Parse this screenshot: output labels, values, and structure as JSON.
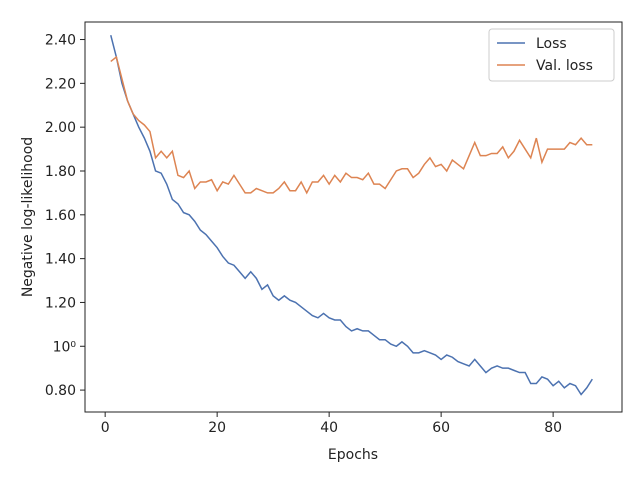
{
  "chart_data": {
    "type": "line",
    "xlabel": "Epochs",
    "ylabel": "Negative log-likelihood",
    "x": [
      1,
      2,
      3,
      4,
      5,
      6,
      7,
      8,
      9,
      10,
      11,
      12,
      13,
      14,
      15,
      16,
      17,
      18,
      19,
      20,
      21,
      22,
      23,
      24,
      25,
      26,
      27,
      28,
      29,
      30,
      31,
      32,
      33,
      34,
      35,
      36,
      37,
      38,
      39,
      40,
      41,
      42,
      43,
      44,
      45,
      46,
      47,
      48,
      49,
      50,
      51,
      52,
      53,
      54,
      55,
      56,
      57,
      58,
      59,
      60,
      61,
      62,
      63,
      64,
      65,
      66,
      67,
      68,
      69,
      70,
      71,
      72,
      73,
      74,
      75,
      76,
      77,
      78,
      79,
      80,
      81,
      82,
      83,
      84,
      85,
      86,
      87
    ],
    "series": [
      {
        "name": "Loss",
        "color": "#4c72b0",
        "values": [
          2.42,
          2.32,
          2.2,
          2.12,
          2.06,
          2.0,
          1.95,
          1.89,
          1.8,
          1.79,
          1.74,
          1.67,
          1.65,
          1.61,
          1.6,
          1.57,
          1.53,
          1.51,
          1.48,
          1.45,
          1.41,
          1.38,
          1.37,
          1.34,
          1.31,
          1.34,
          1.31,
          1.26,
          1.28,
          1.23,
          1.21,
          1.23,
          1.21,
          1.2,
          1.18,
          1.16,
          1.14,
          1.13,
          1.15,
          1.13,
          1.12,
          1.12,
          1.09,
          1.07,
          1.08,
          1.07,
          1.07,
          1.05,
          1.03,
          1.03,
          1.01,
          1.0,
          1.02,
          1.0,
          0.97,
          0.97,
          0.98,
          0.97,
          0.96,
          0.94,
          0.96,
          0.95,
          0.93,
          0.92,
          0.91,
          0.94,
          0.91,
          0.88,
          0.9,
          0.91,
          0.9,
          0.9,
          0.89,
          0.88,
          0.88,
          0.83,
          0.83,
          0.86,
          0.85,
          0.82,
          0.84,
          0.81,
          0.83,
          0.82,
          0.78,
          0.81,
          0.85
        ]
      },
      {
        "name": "Val. loss",
        "color": "#dd8452",
        "values": [
          2.3,
          2.32,
          2.22,
          2.12,
          2.06,
          2.03,
          2.01,
          1.98,
          1.86,
          1.89,
          1.86,
          1.89,
          1.78,
          1.77,
          1.8,
          1.72,
          1.75,
          1.75,
          1.76,
          1.71,
          1.75,
          1.74,
          1.78,
          1.74,
          1.7,
          1.7,
          1.72,
          1.71,
          1.7,
          1.7,
          1.72,
          1.75,
          1.71,
          1.71,
          1.75,
          1.7,
          1.75,
          1.75,
          1.78,
          1.74,
          1.78,
          1.75,
          1.79,
          1.77,
          1.77,
          1.76,
          1.79,
          1.74,
          1.74,
          1.72,
          1.76,
          1.8,
          1.81,
          1.81,
          1.77,
          1.79,
          1.83,
          1.86,
          1.82,
          1.83,
          1.8,
          1.85,
          1.83,
          1.81,
          1.87,
          1.93,
          1.87,
          1.87,
          1.88,
          1.88,
          1.91,
          1.86,
          1.89,
          1.94,
          1.9,
          1.86,
          1.95,
          1.84,
          1.9,
          1.9,
          1.9,
          1.9,
          1.93,
          1.92,
          1.95,
          1.92,
          1.92
        ]
      }
    ],
    "xlim": [
      -3.6,
      92.3
    ],
    "xticks": [
      0,
      20,
      40,
      60,
      80
    ],
    "ylim": [
      0.7,
      2.48
    ],
    "yticks": [
      {
        "value": 0.8,
        "label": "0.80"
      },
      {
        "value": 1,
        "label": "10⁰"
      },
      {
        "value": 1.2,
        "label": "1.20"
      },
      {
        "value": 1.4,
        "label": "1.40"
      },
      {
        "value": 1.6,
        "label": "1.60"
      },
      {
        "value": 1.8,
        "label": "1.80"
      },
      {
        "value": 2.0,
        "label": "2.00"
      },
      {
        "value": 2.2,
        "label": "2.20"
      },
      {
        "value": 2.4,
        "label": "2.40"
      }
    ],
    "grid": false,
    "legend": "upper right"
  }
}
